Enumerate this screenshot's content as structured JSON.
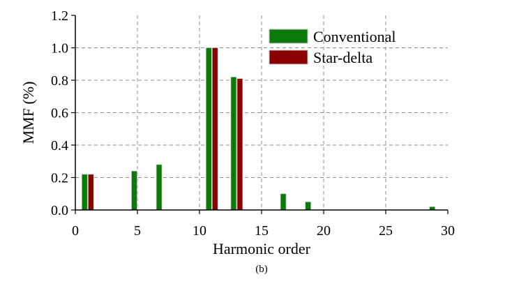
{
  "chart_data": {
    "type": "bar",
    "title": "",
    "xlabel": "Harmonic order",
    "ylabel": "MMF (%)",
    "caption": "(b)",
    "xlim": [
      0,
      30
    ],
    "ylim": [
      0,
      1.2
    ],
    "xticks": [
      "0",
      "5",
      "10",
      "15",
      "20",
      "25",
      "30"
    ],
    "yticks": [
      "0.0",
      "0.2",
      "0.4",
      "0.6",
      "0.8",
      "1.0",
      "1.2"
    ],
    "xtick_values": [
      0,
      5,
      10,
      15,
      20,
      25,
      30
    ],
    "ytick_values": [
      0,
      0.2,
      0.4,
      0.6,
      0.8,
      1.0,
      1.2
    ],
    "grid": true,
    "legend_position": "top-right",
    "series": [
      {
        "name": "Conventional",
        "color": "#0a7a0a",
        "points": [
          {
            "x": 1,
            "y": 0.22
          },
          {
            "x": 5,
            "y": 0.24
          },
          {
            "x": 7,
            "y": 0.28
          },
          {
            "x": 11,
            "y": 1.0
          },
          {
            "x": 13,
            "y": 0.82
          },
          {
            "x": 17,
            "y": 0.1
          },
          {
            "x": 19,
            "y": 0.05
          },
          {
            "x": 29,
            "y": 0.02
          }
        ]
      },
      {
        "name": "Star-delta",
        "color": "#8a0000",
        "points": [
          {
            "x": 1,
            "y": 0.22
          },
          {
            "x": 11,
            "y": 1.0
          },
          {
            "x": 13,
            "y": 0.81
          }
        ]
      }
    ]
  }
}
